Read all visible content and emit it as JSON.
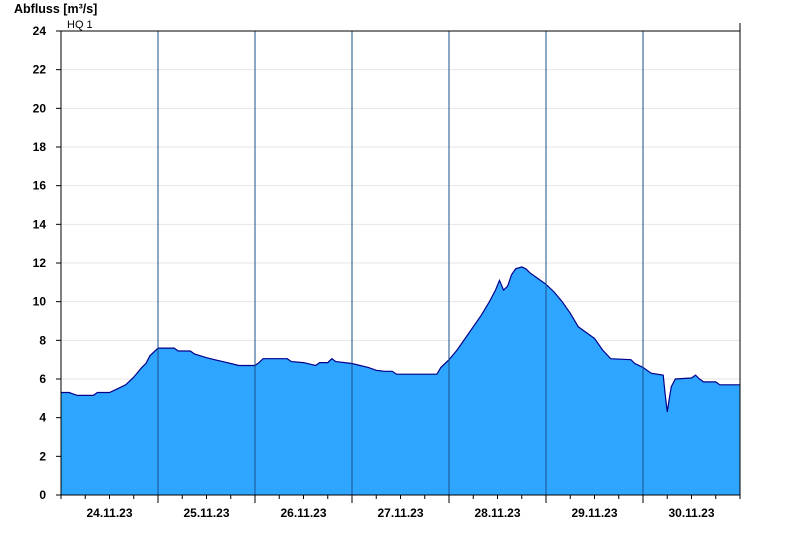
{
  "chart_data": {
    "type": "area",
    "ylabel": "Abfluss [m³/s]",
    "threshold_label": "HQ 1",
    "ylim": [
      0,
      24
    ],
    "yticks": [
      0,
      2,
      4,
      6,
      8,
      10,
      12,
      14,
      16,
      18,
      20,
      22,
      24
    ],
    "xlim": [
      "2023-11-23T12:00",
      "2023-11-30T12:00"
    ],
    "x_tick_labels": [
      {
        "x": "2023-11-24T00:00",
        "label": "24.11.23"
      },
      {
        "x": "2023-11-25T00:00",
        "label": "25.11.23"
      },
      {
        "x": "2023-11-26T00:00",
        "label": "26.11.23"
      },
      {
        "x": "2023-11-27T00:00",
        "label": "27.11.23"
      },
      {
        "x": "2023-11-28T00:00",
        "label": "28.11.23"
      },
      {
        "x": "2023-11-29T00:00",
        "label": "29.11.23"
      },
      {
        "x": "2023-11-30T00:00",
        "label": "30.11.23"
      }
    ],
    "day_boundaries": [
      "2023-11-24T12:00",
      "2023-11-25T12:00",
      "2023-11-26T12:00",
      "2023-11-27T12:00",
      "2023-11-28T12:00",
      "2023-11-29T12:00"
    ],
    "grid": true,
    "fill_color": "#2ea6ff",
    "line_color": "#00008b",
    "series": [
      {
        "points": [
          [
            "2023-11-23T12:00",
            5.3
          ],
          [
            "2023-11-23T14:00",
            5.3
          ],
          [
            "2023-11-23T16:00",
            5.15
          ],
          [
            "2023-11-23T20:00",
            5.15
          ],
          [
            "2023-11-23T21:00",
            5.3
          ],
          [
            "2023-11-24T00:00",
            5.3
          ],
          [
            "2023-11-24T02:00",
            5.5
          ],
          [
            "2023-11-24T04:00",
            5.7
          ],
          [
            "2023-11-24T06:00",
            6.1
          ],
          [
            "2023-11-24T08:00",
            6.6
          ],
          [
            "2023-11-24T09:00",
            6.8
          ],
          [
            "2023-11-24T10:00",
            7.2
          ],
          [
            "2023-11-24T12:00",
            7.6
          ],
          [
            "2023-11-24T16:00",
            7.6
          ],
          [
            "2023-11-24T17:00",
            7.45
          ],
          [
            "2023-11-24T20:00",
            7.45
          ],
          [
            "2023-11-24T21:00",
            7.3
          ],
          [
            "2023-11-25T00:00",
            7.1
          ],
          [
            "2023-11-25T02:00",
            7.0
          ],
          [
            "2023-11-25T04:00",
            6.9
          ],
          [
            "2023-11-25T06:00",
            6.8
          ],
          [
            "2023-11-25T08:00",
            6.7
          ],
          [
            "2023-11-25T12:00",
            6.7
          ],
          [
            "2023-11-25T13:00",
            6.85
          ],
          [
            "2023-11-25T14:00",
            7.05
          ],
          [
            "2023-11-25T20:00",
            7.05
          ],
          [
            "2023-11-25T21:00",
            6.9
          ],
          [
            "2023-11-26T00:00",
            6.85
          ],
          [
            "2023-11-26T03:00",
            6.7
          ],
          [
            "2023-11-26T04:00",
            6.85
          ],
          [
            "2023-11-26T06:00",
            6.85
          ],
          [
            "2023-11-26T07:00",
            7.05
          ],
          [
            "2023-11-26T08:00",
            6.9
          ],
          [
            "2023-11-26T12:00",
            6.8
          ],
          [
            "2023-11-26T14:00",
            6.7
          ],
          [
            "2023-11-26T16:00",
            6.6
          ],
          [
            "2023-11-26T18:00",
            6.45
          ],
          [
            "2023-11-26T20:00",
            6.4
          ],
          [
            "2023-11-26T22:00",
            6.4
          ],
          [
            "2023-11-26T23:00",
            6.25
          ],
          [
            "2023-11-27T09:00",
            6.25
          ],
          [
            "2023-11-27T10:00",
            6.6
          ],
          [
            "2023-11-27T12:00",
            7.0
          ],
          [
            "2023-11-27T14:00",
            7.5
          ],
          [
            "2023-11-27T16:00",
            8.1
          ],
          [
            "2023-11-27T18:00",
            8.7
          ],
          [
            "2023-11-27T20:00",
            9.3
          ],
          [
            "2023-11-27T22:00",
            10.0
          ],
          [
            "2023-11-27T23:30",
            10.6
          ],
          [
            "2023-11-28T00:30",
            11.1
          ],
          [
            "2023-11-28T01:30",
            10.6
          ],
          [
            "2023-11-28T02:30",
            10.8
          ],
          [
            "2023-11-28T03:30",
            11.4
          ],
          [
            "2023-11-28T04:30",
            11.7
          ],
          [
            "2023-11-28T06:00",
            11.8
          ],
          [
            "2023-11-28T07:00",
            11.7
          ],
          [
            "2023-11-28T08:00",
            11.5
          ],
          [
            "2023-11-28T10:00",
            11.2
          ],
          [
            "2023-11-28T12:00",
            10.9
          ],
          [
            "2023-11-28T14:00",
            10.5
          ],
          [
            "2023-11-28T16:00",
            10.0
          ],
          [
            "2023-11-28T18:00",
            9.4
          ],
          [
            "2023-11-28T20:00",
            8.7
          ],
          [
            "2023-11-28T22:00",
            8.4
          ],
          [
            "2023-11-29T00:00",
            8.1
          ],
          [
            "2023-11-29T02:00",
            7.5
          ],
          [
            "2023-11-29T04:00",
            7.05
          ],
          [
            "2023-11-29T09:00",
            7.0
          ],
          [
            "2023-11-29T10:00",
            6.8
          ],
          [
            "2023-11-29T12:00",
            6.6
          ],
          [
            "2023-11-29T14:00",
            6.3
          ],
          [
            "2023-11-29T17:00",
            6.2
          ],
          [
            "2023-11-29T17:30",
            5.2
          ],
          [
            "2023-11-29T18:00",
            4.3
          ],
          [
            "2023-11-29T18:30",
            5.0
          ],
          [
            "2023-11-29T19:00",
            5.6
          ],
          [
            "2023-11-29T20:00",
            6.0
          ],
          [
            "2023-11-30T00:00",
            6.05
          ],
          [
            "2023-11-30T01:00",
            6.2
          ],
          [
            "2023-11-30T02:00",
            6.0
          ],
          [
            "2023-11-30T03:00",
            5.85
          ],
          [
            "2023-11-30T06:00",
            5.85
          ],
          [
            "2023-11-30T07:00",
            5.7
          ],
          [
            "2023-11-30T12:00",
            5.7
          ]
        ]
      }
    ]
  }
}
